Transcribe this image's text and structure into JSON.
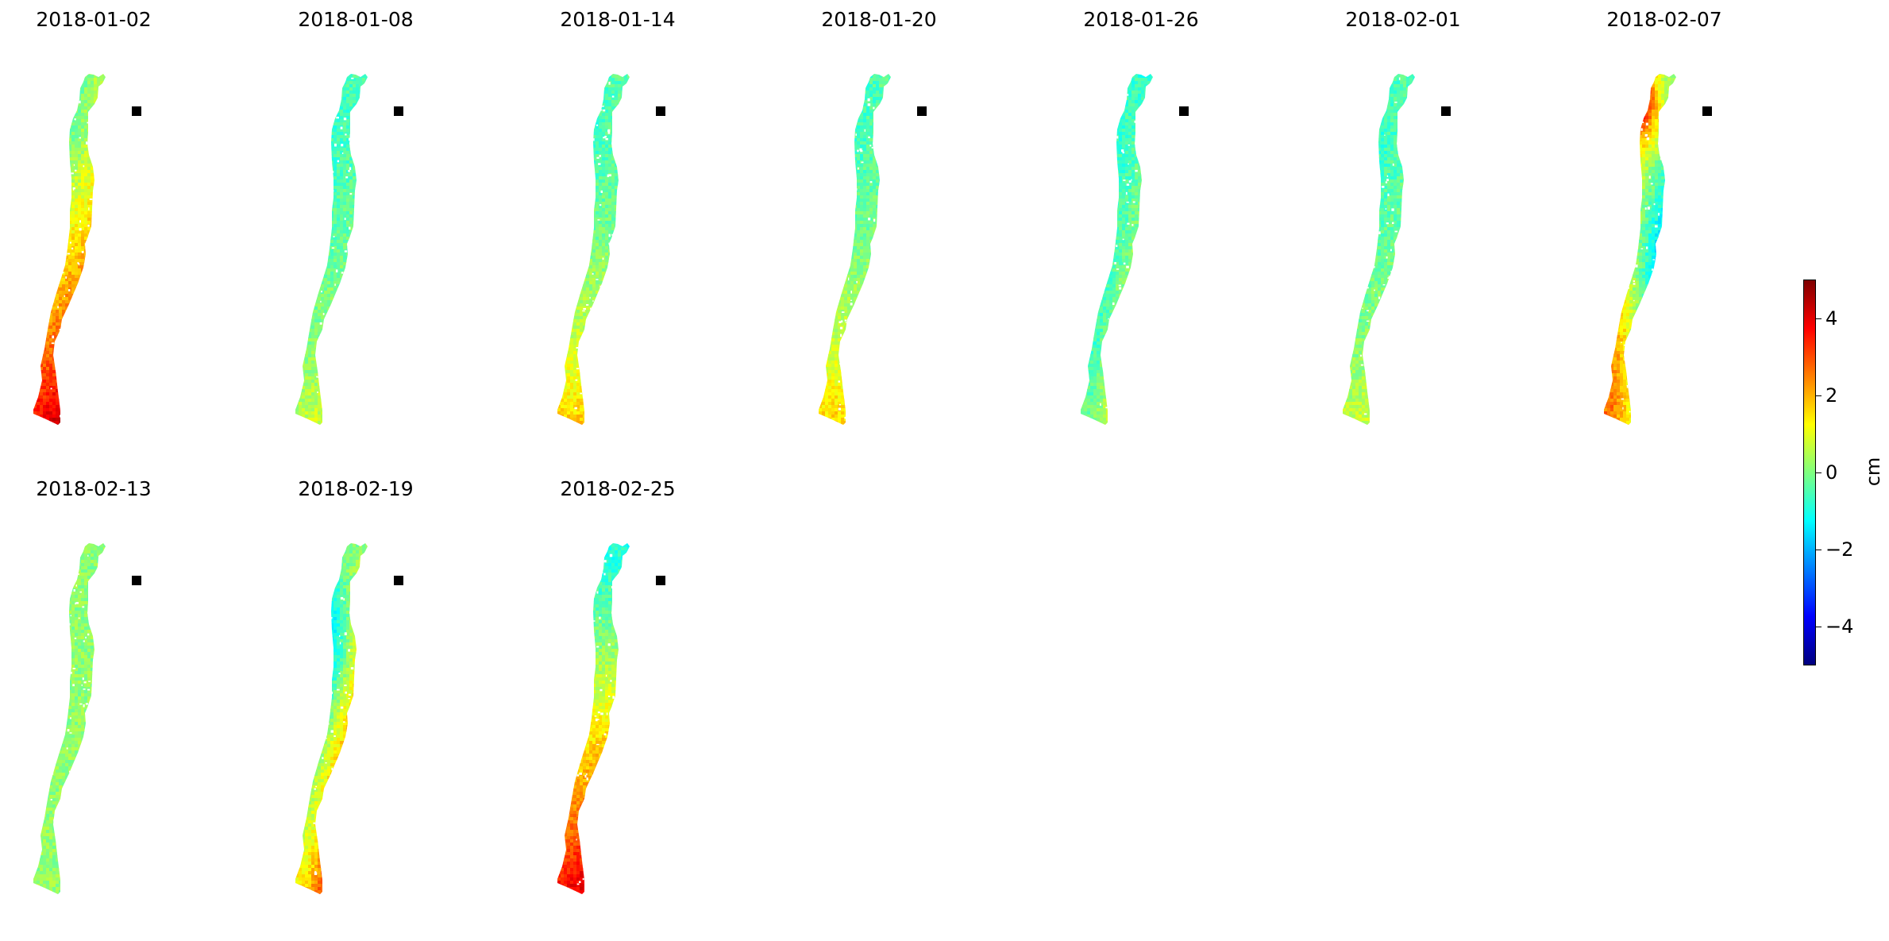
{
  "chart_data": {
    "type": "heatmap",
    "title": "",
    "panels": [
      {
        "title": "2018-01-02",
        "pattern": "south-warm",
        "reference_marker": true
      },
      {
        "title": "2018-01-08",
        "pattern": "mostly-neutral",
        "reference_marker": true
      },
      {
        "title": "2018-01-14",
        "pattern": "mild-south",
        "reference_marker": true
      },
      {
        "title": "2018-01-20",
        "pattern": "mild-south",
        "reference_marker": true
      },
      {
        "title": "2018-01-26",
        "pattern": "mixed",
        "reference_marker": true
      },
      {
        "title": "2018-02-01",
        "pattern": "mostly-neutral",
        "reference_marker": true
      },
      {
        "title": "2018-02-07",
        "pattern": "north-warm-east-cool",
        "reference_marker": true
      },
      {
        "title": "2018-02-13",
        "pattern": "flat",
        "reference_marker": true
      },
      {
        "title": "2018-02-19",
        "pattern": "east-warm-west-cool",
        "reference_marker": true
      },
      {
        "title": "2018-02-25",
        "pattern": "south-hot",
        "reference_marker": true
      }
    ],
    "layout": {
      "rows": 2,
      "cols": 7
    },
    "colorbar": {
      "label": "cm",
      "vmin": -5,
      "vmax": 5,
      "ticks": [
        4,
        2,
        0,
        -2,
        -4
      ],
      "tick_labels": [
        "4",
        "2",
        "0",
        "−2",
        "−4"
      ],
      "colormap": "jet"
    },
    "colors": {
      "jet": [
        "#00007f",
        "#0000ff",
        "#007fff",
        "#00ffff",
        "#7fff7f",
        "#ffff00",
        "#ff7f00",
        "#ff0000",
        "#7f0000"
      ],
      "marker": "#000000",
      "background": "#ffffff"
    }
  }
}
